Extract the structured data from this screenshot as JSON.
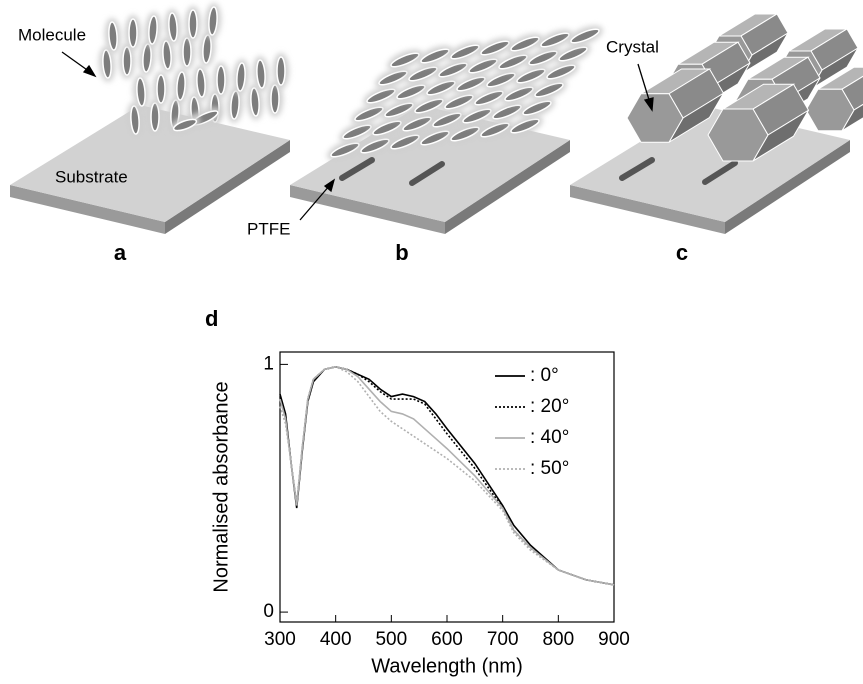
{
  "panels": [
    {
      "label": "a",
      "texts": [
        "Molecule",
        "Substrate"
      ]
    },
    {
      "label": "b",
      "texts": [
        "PTFE"
      ]
    },
    {
      "label": "c",
      "texts": [
        "Crystal"
      ]
    }
  ],
  "chart_data": {
    "type": "line",
    "label": "d",
    "xlabel": "Wavelength (nm)",
    "ylabel": "Normalised absorbance",
    "x": [
      300,
      310,
      320,
      330,
      340,
      350,
      360,
      380,
      400,
      420,
      440,
      460,
      480,
      500,
      520,
      540,
      560,
      580,
      600,
      650,
      700,
      720,
      750,
      800,
      850,
      900
    ],
    "series": [
      {
        "name": ": 0°",
        "color": "#000000",
        "dash": "solid",
        "values": [
          0.88,
          0.8,
          0.6,
          0.42,
          0.65,
          0.85,
          0.93,
          0.98,
          0.99,
          0.98,
          0.96,
          0.94,
          0.9,
          0.87,
          0.88,
          0.87,
          0.85,
          0.8,
          0.74,
          0.6,
          0.43,
          0.35,
          0.27,
          0.17,
          0.13,
          0.11
        ]
      },
      {
        "name": ": 20°",
        "color": "#000000",
        "dash": "dotted",
        "values": [
          0.87,
          0.79,
          0.6,
          0.43,
          0.66,
          0.86,
          0.94,
          0.98,
          0.99,
          0.98,
          0.96,
          0.93,
          0.89,
          0.86,
          0.86,
          0.86,
          0.84,
          0.78,
          0.72,
          0.58,
          0.42,
          0.33,
          0.26,
          0.17,
          0.13,
          0.11
        ]
      },
      {
        "name": ": 40°",
        "color": "#b0b0b0",
        "dash": "solid",
        "values": [
          0.86,
          0.78,
          0.6,
          0.43,
          0.66,
          0.86,
          0.94,
          0.98,
          0.99,
          0.98,
          0.95,
          0.9,
          0.85,
          0.81,
          0.8,
          0.78,
          0.74,
          0.7,
          0.66,
          0.55,
          0.42,
          0.33,
          0.26,
          0.17,
          0.13,
          0.11
        ]
      },
      {
        "name": ": 50°",
        "color": "#b0b0b0",
        "dash": "dotted",
        "values": [
          0.83,
          0.76,
          0.6,
          0.44,
          0.67,
          0.86,
          0.94,
          0.98,
          0.99,
          0.97,
          0.93,
          0.87,
          0.81,
          0.77,
          0.74,
          0.71,
          0.68,
          0.65,
          0.62,
          0.53,
          0.41,
          0.32,
          0.25,
          0.17,
          0.13,
          0.11
        ]
      }
    ],
    "xlim": [
      300,
      900
    ],
    "xticks": [
      300,
      400,
      500,
      600,
      700,
      800,
      900
    ],
    "ylim": [
      -0.04,
      1.05
    ],
    "yticks": [
      0,
      1
    ],
    "legend": "upper right"
  }
}
